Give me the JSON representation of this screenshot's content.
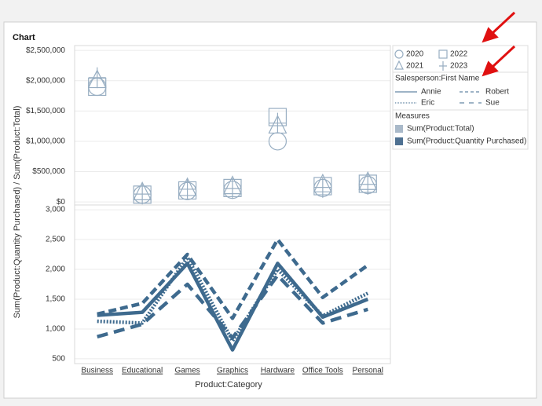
{
  "chart_data": [
    {
      "type": "scatter",
      "title": "Chart",
      "ylabel": "Sum(Product:Quantity Purchased) / Sum(Product:Total)",
      "measure": "Sum(Product:Total)",
      "measure_color": "#a9b9c9",
      "categories": [
        "Business",
        "Educational",
        "Games",
        "Graphics",
        "Hardware",
        "Office Tools",
        "Personal"
      ],
      "series": [
        {
          "name": "2020",
          "marker": "circle",
          "color": "#98aec2",
          "values": [
            1900000,
            120000,
            180000,
            200000,
            1000000,
            230000,
            280000
          ]
        },
        {
          "name": "2021",
          "marker": "triangle",
          "color": "#98aec2",
          "values": [
            2000000,
            150000,
            220000,
            250000,
            1250000,
            280000,
            320000
          ]
        },
        {
          "name": "2022",
          "marker": "square",
          "color": "#98aec2",
          "values": [
            1900000,
            120000,
            190000,
            230000,
            1400000,
            260000,
            300000
          ]
        },
        {
          "name": "2023",
          "marker": "plus",
          "color": "#98aec2",
          "values": [
            2050000,
            130000,
            210000,
            220000,
            1300000,
            240000,
            290000
          ]
        }
      ],
      "ylim": [
        -50000,
        2580000
      ],
      "yticks": [
        {
          "value": 0,
          "label": "$0"
        },
        {
          "value": 500000,
          "label": "$500,000"
        },
        {
          "value": 1000000,
          "label": "$1,000,000"
        },
        {
          "value": 1500000,
          "label": "$1,500,000"
        },
        {
          "value": 2000000,
          "label": "$2,000,000"
        },
        {
          "value": 2500000,
          "label": "$2,500,000"
        }
      ],
      "grid": true
    },
    {
      "type": "line",
      "xlabel": "Product:Category",
      "legend_title": "Salesperson:First Name",
      "measure": "Sum(Product:Quantity Purchased)",
      "measure_color": "#4f7192",
      "categories": [
        "Business",
        "Educational",
        "Games",
        "Graphics",
        "Hardware",
        "Office Tools",
        "Personal"
      ],
      "series": [
        {
          "name": "Annie",
          "dash": "solid",
          "color": "#3e6a8e",
          "values": [
            1230,
            1280,
            2100,
            650,
            2100,
            1200,
            1500
          ]
        },
        {
          "name": "Robert",
          "dash": "dashed",
          "color": "#3e6a8e",
          "values": [
            1250,
            1430,
            2250,
            1180,
            2500,
            1530,
            2070
          ]
        },
        {
          "name": "Eric",
          "dash": "dotted",
          "color": "#3e6a8e",
          "values": [
            1130,
            1100,
            2200,
            800,
            2000,
            1220,
            1600
          ]
        },
        {
          "name": "Sue",
          "dash": "longdash",
          "color": "#3e6a8e",
          "values": [
            870,
            1080,
            1750,
            850,
            1900,
            1100,
            1330
          ]
        }
      ],
      "ylim": [
        420,
        3080
      ],
      "yticks": [
        500,
        {
          "value": 1000,
          "label": "1,000"
        },
        {
          "value": 1500,
          "label": "1,500"
        },
        {
          "value": 2000,
          "label": "2,000"
        },
        {
          "value": 2500,
          "label": "2,500"
        },
        {
          "value": 3000,
          "label": "3,000"
        }
      ],
      "grid": true
    }
  ],
  "legend": {
    "measures_title": "Measures"
  }
}
